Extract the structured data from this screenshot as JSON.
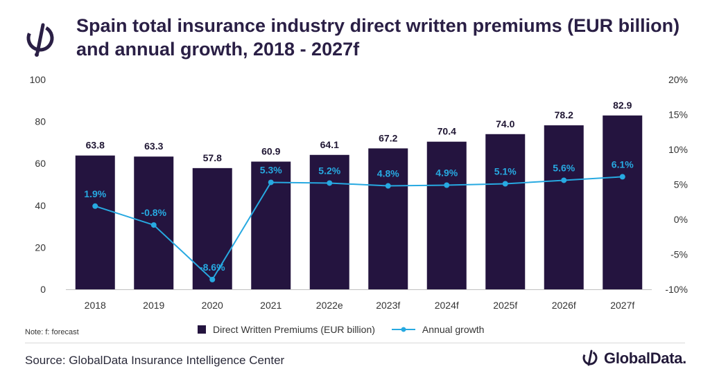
{
  "title": "Spain total insurance industry direct written premiums (EUR billion) and annual growth, 2018 - 2027f",
  "note": "Note: f: forecast",
  "source": "Source: GlobalData Insurance Intelligence Center",
  "brand": "GlobalData.",
  "colors": {
    "bar": "#24143f",
    "line": "#27a9e1",
    "title": "#2a1f45"
  },
  "chart_data": {
    "type": "bar",
    "categories": [
      "2018",
      "2019",
      "2020",
      "2021",
      "2022e",
      "2023f",
      "2024f",
      "2025f",
      "2026f",
      "2027f"
    ],
    "series": [
      {
        "name": "Direct Written Premiums (EUR billion)",
        "type": "bar",
        "axis": "left",
        "values": [
          63.8,
          63.3,
          57.8,
          60.9,
          64.1,
          67.2,
          70.4,
          74.0,
          78.2,
          82.9
        ],
        "labels": [
          "63.8",
          "63.3",
          "57.8",
          "60.9",
          "64.1",
          "67.2",
          "70.4",
          "74.0",
          "78.2",
          "82.9"
        ]
      },
      {
        "name": "Annual growth",
        "type": "line",
        "axis": "right",
        "values": [
          1.9,
          -0.8,
          -8.6,
          5.3,
          5.2,
          4.8,
          4.9,
          5.1,
          5.6,
          6.1
        ],
        "labels": [
          "1.9%",
          "-0.8%",
          "-8.6%",
          "5.3%",
          "5.2%",
          "4.8%",
          "4.9%",
          "5.1%",
          "5.6%",
          "6.1%"
        ]
      }
    ],
    "ylim": [
      0,
      100
    ],
    "yticks": [
      "0",
      "20",
      "40",
      "60",
      "80",
      "100"
    ],
    "y2lim": [
      -10,
      20
    ],
    "y2ticks": [
      "-10%",
      "-5%",
      "0%",
      "5%",
      "10%",
      "15%",
      "20%"
    ],
    "legend_position": "bottom",
    "grid": false
  }
}
